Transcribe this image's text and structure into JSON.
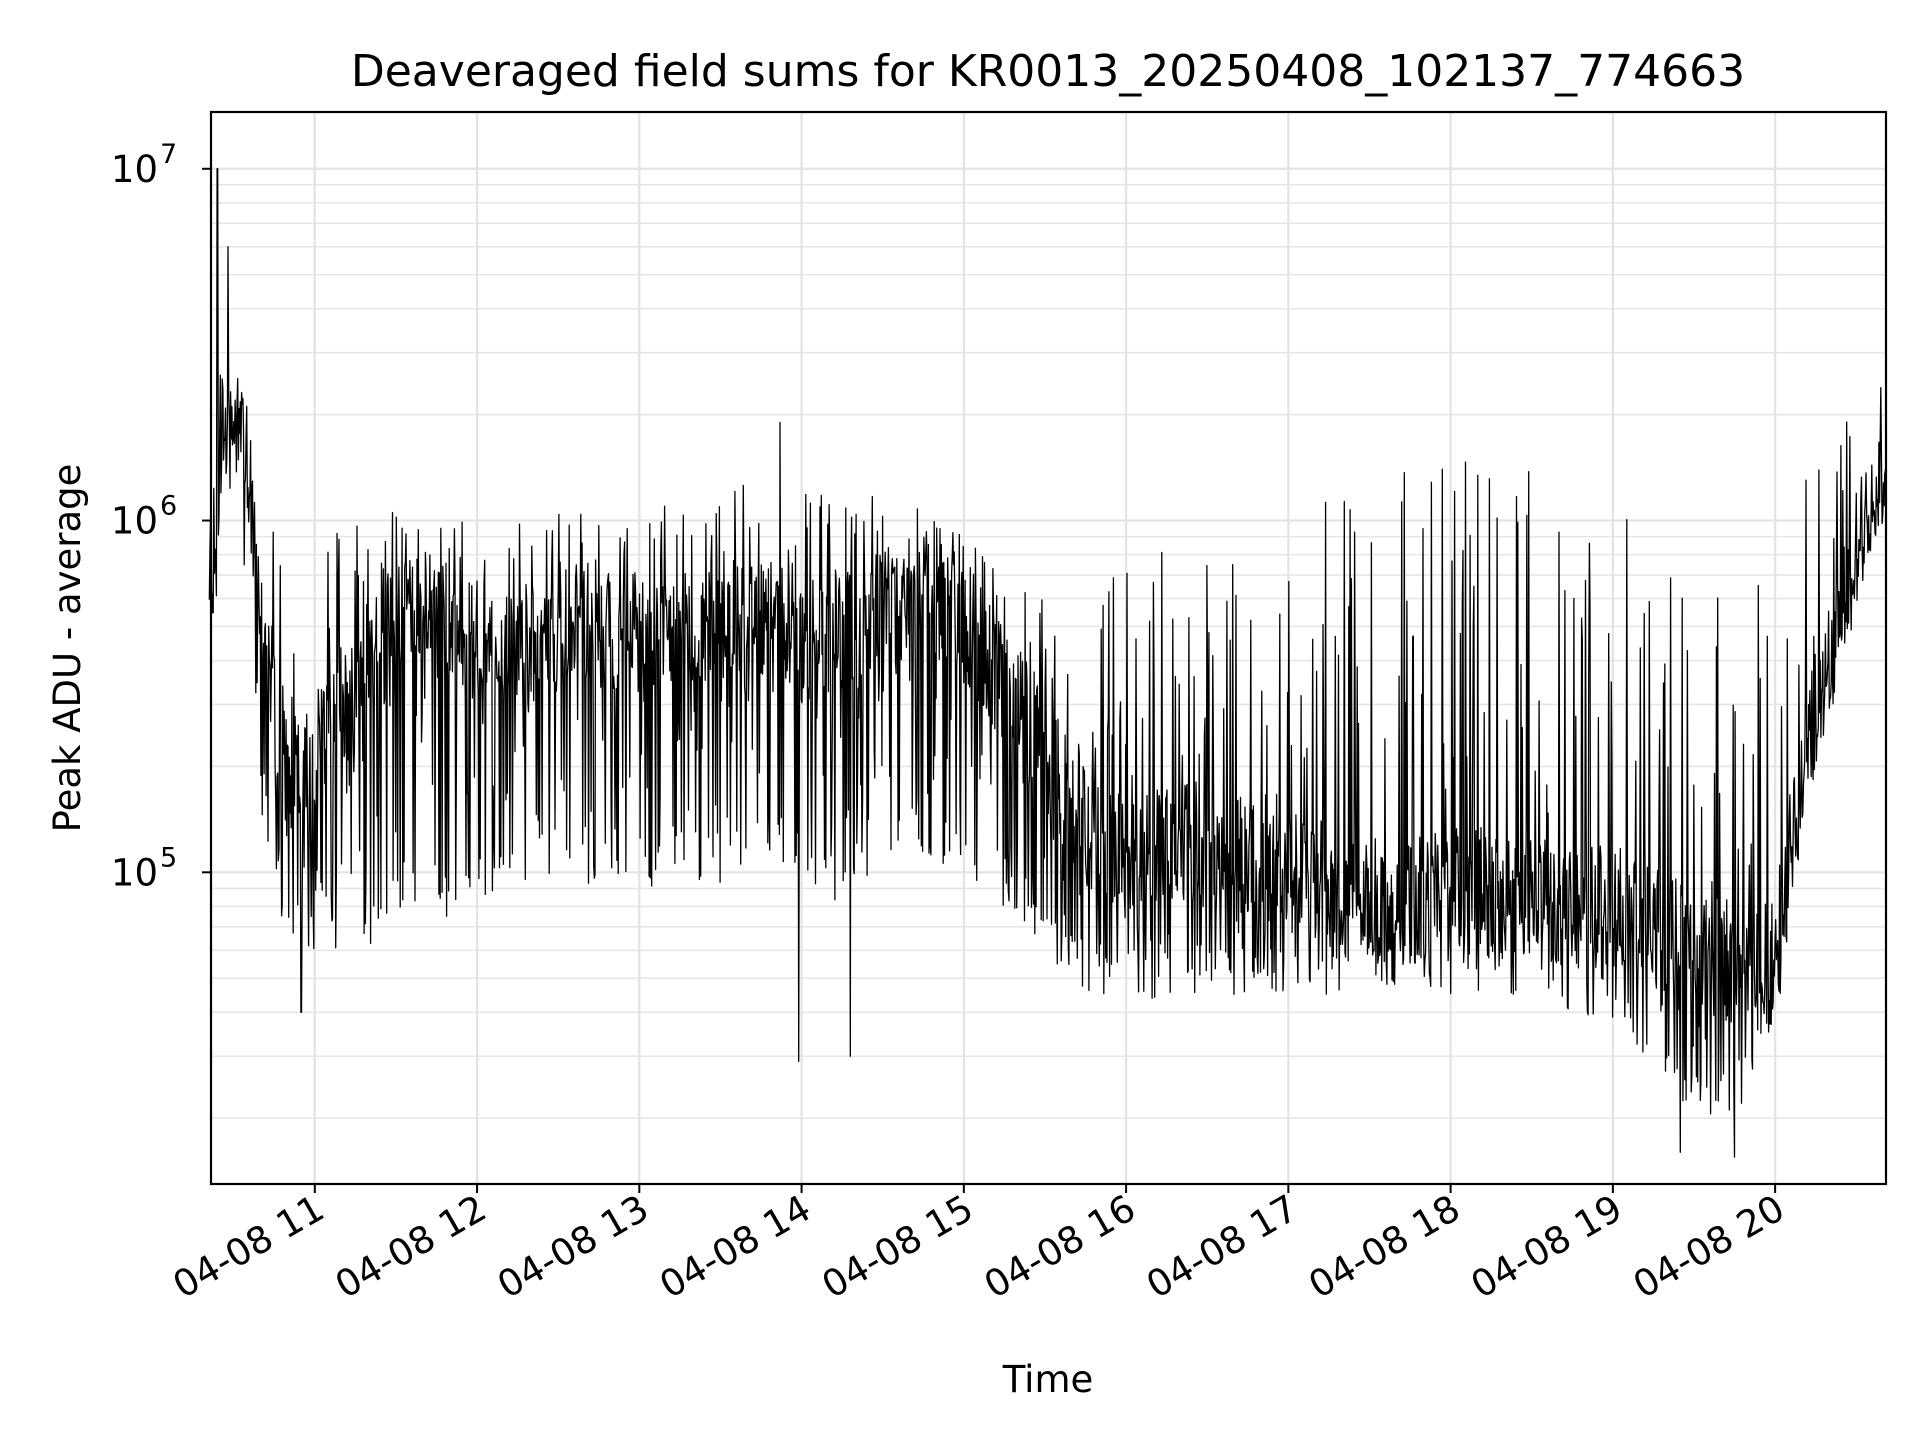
{
  "chart_data": {
    "type": "line",
    "title": "Deaveraged field sums for KR0013_20250408_102137_774663",
    "xlabel": "Time",
    "ylabel": "Peak ADU - average",
    "yscale": "log",
    "ylim": [
      13000,
      14500000
    ],
    "xlim": [
      "2025-04-08 10:21:37",
      "2025-04-08 20:41:00"
    ],
    "x_ticks": [
      {
        "value": "2025-04-08 11:00",
        "label": "04-08 11"
      },
      {
        "value": "2025-04-08 12:00",
        "label": "04-08 12"
      },
      {
        "value": "2025-04-08 13:00",
        "label": "04-08 13"
      },
      {
        "value": "2025-04-08 14:00",
        "label": "04-08 14"
      },
      {
        "value": "2025-04-08 15:00",
        "label": "04-08 15"
      },
      {
        "value": "2025-04-08 16:00",
        "label": "04-08 16"
      },
      {
        "value": "2025-04-08 17:00",
        "label": "04-08 17"
      },
      {
        "value": "2025-04-08 18:00",
        "label": "04-08 18"
      },
      {
        "value": "2025-04-08 19:00",
        "label": "04-08 19"
      },
      {
        "value": "2025-04-08 20:00",
        "label": "04-08 20"
      }
    ],
    "y_ticks": [
      {
        "value": 100000,
        "base": "10",
        "exp": "5"
      },
      {
        "value": 1000000,
        "base": "10",
        "exp": "6"
      },
      {
        "value": 10000000,
        "base": "10",
        "exp": "7"
      }
    ],
    "grid": true,
    "line_color": "#000000",
    "series": [
      {
        "x": [
          "2025-04-08 10:21",
          "2025-04-08 10:25",
          "2025-04-08 10:30",
          "2025-04-08 10:35",
          "2025-04-08 10:40",
          "2025-04-08 10:45",
          "2025-04-08 10:50",
          "2025-04-08 10:55",
          "2025-04-08 11:00",
          "2025-04-08 11:10",
          "2025-04-08 11:20",
          "2025-04-08 11:30",
          "2025-04-08 11:40",
          "2025-04-08 11:50",
          "2025-04-08 12:00",
          "2025-04-08 12:15",
          "2025-04-08 12:30",
          "2025-04-08 12:45",
          "2025-04-08 13:00",
          "2025-04-08 13:15",
          "2025-04-08 13:30",
          "2025-04-08 13:45",
          "2025-04-08 14:00",
          "2025-04-08 14:15",
          "2025-04-08 14:30",
          "2025-04-08 14:45",
          "2025-04-08 15:00",
          "2025-04-08 15:15",
          "2025-04-08 15:30",
          "2025-04-08 15:45",
          "2025-04-08 16:00",
          "2025-04-08 16:15",
          "2025-04-08 16:30",
          "2025-04-08 16:45",
          "2025-04-08 17:00",
          "2025-04-08 17:15",
          "2025-04-08 17:30",
          "2025-04-08 17:45",
          "2025-04-08 18:00",
          "2025-04-08 18:15",
          "2025-04-08 18:30",
          "2025-04-08 18:45",
          "2025-04-08 19:00",
          "2025-04-08 19:15",
          "2025-04-08 19:30",
          "2025-04-08 19:45",
          "2025-04-08 20:00",
          "2025-04-08 20:10",
          "2025-04-08 20:20",
          "2025-04-08 20:30",
          "2025-04-08 20:41"
        ],
        "baseline": [
          700000,
          1500000,
          2000000,
          1500000,
          600000,
          300000,
          180000,
          200000,
          220000,
          280000,
          400000,
          550000,
          550000,
          500000,
          450000,
          400000,
          480000,
          520000,
          450000,
          500000,
          550000,
          500000,
          450000,
          500000,
          550000,
          650000,
          500000,
          350000,
          220000,
          130000,
          110000,
          120000,
          130000,
          110000,
          100000,
          95000,
          85000,
          80000,
          100000,
          90000,
          85000,
          80000,
          80000,
          70000,
          60000,
          55000,
          60000,
          200000,
          400000,
          800000,
          1600000
        ],
        "lower": [
          450000,
          700000,
          1000000,
          600000,
          150000,
          80000,
          60000,
          60000,
          60000,
          60000,
          60000,
          70000,
          80000,
          70000,
          80000,
          80000,
          100000,
          90000,
          80000,
          100000,
          90000,
          110000,
          90000,
          80000,
          110000,
          110000,
          100000,
          80000,
          60000,
          45000,
          45000,
          42000,
          45000,
          45000,
          45000,
          45000,
          48000,
          48000,
          45000,
          45000,
          45000,
          40000,
          38000,
          28000,
          20000,
          20000,
          35000,
          130000,
          300000,
          600000,
          1100000
        ],
        "upper": [
          1500000,
          2800000,
          2600000,
          2200000,
          1300000,
          1000000,
          900000,
          900000,
          900000,
          1000000,
          1100000,
          1100000,
          1100000,
          1000000,
          1000000,
          1000000,
          1100000,
          1100000,
          1100000,
          1200000,
          1300000,
          1300000,
          1200000,
          1200000,
          1200000,
          1200000,
          900000,
          700000,
          600000,
          500000,
          800000,
          900000,
          1000000,
          1100000,
          1100000,
          1200000,
          1300000,
          1400000,
          1500000,
          1500000,
          1500000,
          1400000,
          1300000,
          1300000,
          1200000,
          1200000,
          1200000,
          1400000,
          1600000,
          2100000,
          2700000
        ],
        "spikes": [
          {
            "x": "2025-04-08 10:24",
            "y": 10000000
          },
          {
            "x": "2025-04-08 10:28",
            "y": 6000000
          },
          {
            "x": "2025-04-08 10:55",
            "y": 40000
          },
          {
            "x": "2025-04-08 13:59",
            "y": 29000
          },
          {
            "x": "2025-04-08 14:18",
            "y": 30000
          },
          {
            "x": "2025-04-08 13:52",
            "y": 1900000
          },
          {
            "x": "2025-04-08 19:25",
            "y": 16000
          },
          {
            "x": "2025-04-08 19:45",
            "y": 15500
          }
        ]
      }
    ]
  }
}
